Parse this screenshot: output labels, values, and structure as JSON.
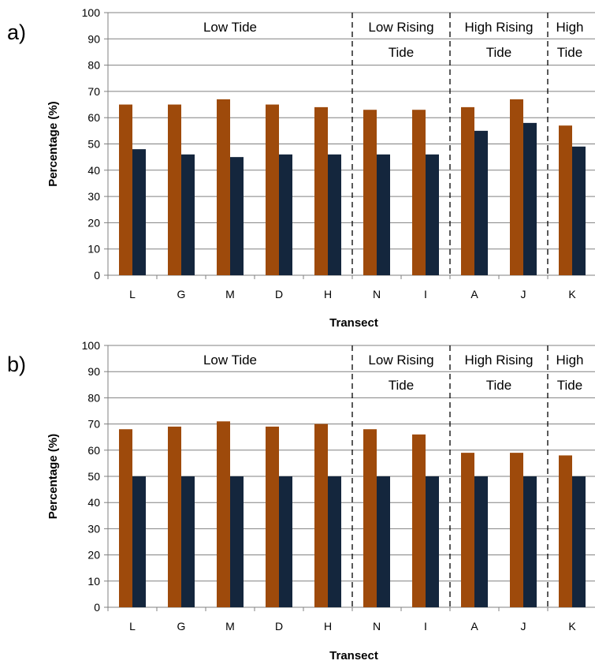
{
  "colors": {
    "series_a": "#9e4a0b",
    "series_b": "#14263d",
    "axis": "#808080",
    "grid": "#808080",
    "divider": "#000000",
    "background": "#ffffff"
  },
  "chart_data": [
    {
      "panel": "a)",
      "type": "bar",
      "xlabel": "Transect",
      "ylabel": "Percentage (%)",
      "ylim": [
        0,
        100
      ],
      "yticks": [
        "0",
        "10",
        "20",
        "30",
        "40",
        "50",
        "60",
        "70",
        "80",
        "90",
        "100"
      ],
      "grid": true,
      "categories": [
        "L",
        "G",
        "M",
        "D",
        "H",
        "N",
        "I",
        "A",
        "J",
        "K"
      ],
      "series": [
        {
          "values": [
            65,
            65,
            67,
            65,
            64,
            63,
            63,
            64,
            67,
            57
          ]
        },
        {
          "values": [
            48,
            46,
            45,
            46,
            46,
            46,
            46,
            55,
            58,
            49
          ]
        }
      ],
      "regions": [
        {
          "line1": "Low Tide",
          "line2": ""
        },
        {
          "line1": "Low Rising",
          "line2": "Tide"
        },
        {
          "line1": "High Rising",
          "line2": "Tide"
        },
        {
          "line1": "High",
          "line2": "Tide"
        }
      ]
    },
    {
      "panel": "b)",
      "type": "bar",
      "xlabel": "Transect",
      "ylabel": "Percentage (%)",
      "ylim": [
        0,
        100
      ],
      "yticks": [
        "0",
        "10",
        "20",
        "30",
        "40",
        "50",
        "60",
        "70",
        "80",
        "90",
        "100"
      ],
      "grid": true,
      "categories": [
        "L",
        "G",
        "M",
        "D",
        "H",
        "N",
        "I",
        "A",
        "J",
        "K"
      ],
      "series": [
        {
          "values": [
            68,
            69,
            71,
            69,
            70,
            68,
            66,
            59,
            59,
            58
          ]
        },
        {
          "values": [
            50,
            50,
            50,
            50,
            50,
            50,
            50,
            50,
            50,
            50
          ]
        }
      ],
      "regions": [
        {
          "line1": "Low Tide",
          "line2": ""
        },
        {
          "line1": "Low Rising",
          "line2": "Tide"
        },
        {
          "line1": "High Rising",
          "line2": "Tide"
        },
        {
          "line1": "High",
          "line2": "Tide"
        }
      ]
    }
  ]
}
